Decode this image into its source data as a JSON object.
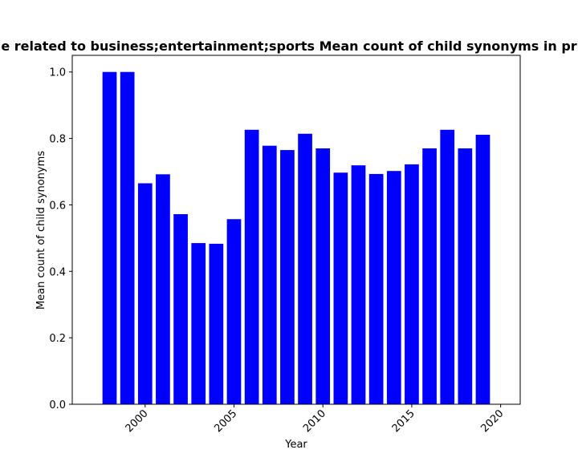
{
  "chart_data": {
    "type": "bar",
    "title": "e related to business;entertainment;sports Mean count of child synonyms in pr",
    "xlabel": "Year",
    "ylabel": "Mean count of child synonyms",
    "x": [
      1998,
      1999,
      2000,
      2001,
      2002,
      2003,
      2004,
      2005,
      2006,
      2007,
      2008,
      2009,
      2010,
      2011,
      2012,
      2013,
      2014,
      2015,
      2016,
      2017,
      2018,
      2019
    ],
    "values": [
      1.0,
      1.0,
      0.665,
      0.692,
      0.572,
      0.485,
      0.483,
      0.557,
      0.826,
      0.778,
      0.765,
      0.814,
      0.77,
      0.697,
      0.719,
      0.693,
      0.702,
      0.722,
      0.77,
      0.826,
      0.77,
      0.811
    ],
    "xlim": [
      1995.9,
      2021.1
    ],
    "ylim": [
      0,
      1.05
    ],
    "xticks": [
      "2000",
      "2005",
      "2010",
      "2015",
      "2020"
    ],
    "yticks": [
      "0.0",
      "0.2",
      "0.4",
      "0.6",
      "0.8",
      "1.0"
    ],
    "bar_color": "#0000ff",
    "grid": false,
    "legend": "none"
  }
}
